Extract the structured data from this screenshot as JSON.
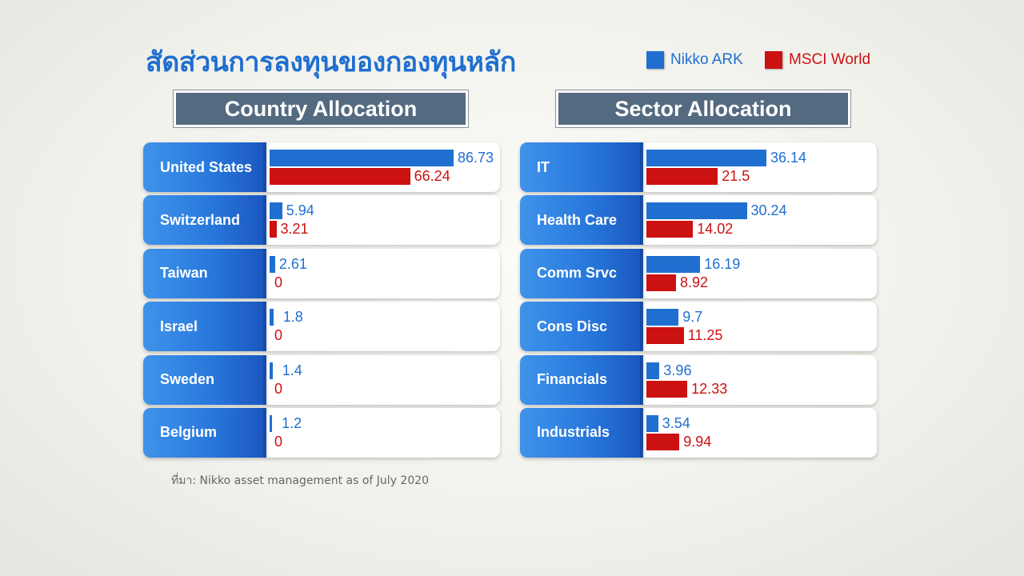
{
  "title": "สัดส่วนการลงทุนของกองทุนหลัก",
  "legend": {
    "nikko": "Nikko ARK",
    "msci": "MSCI World"
  },
  "colors": {
    "nikko": "#1f6fd0",
    "msci": "#cc1111",
    "header": "#546a80"
  },
  "source": "ที่มา: Nikko asset management as of July 2020",
  "chart_data": [
    {
      "type": "bar",
      "title": "Country Allocation",
      "categories": [
        "United States",
        "Switzerland",
        "Taiwan",
        "Israel",
        "Sweden",
        "Belgium"
      ],
      "series": [
        {
          "name": "Nikko ARK",
          "values": [
            86.73,
            5.94,
            2.61,
            1.8,
            1.4,
            1.2
          ]
        },
        {
          "name": "MSCI World",
          "values": [
            66.24,
            3.21,
            0,
            0,
            0,
            0
          ]
        }
      ],
      "value_labels": {
        "nikko": [
          "86.73",
          "5.94",
          "2.61",
          "1.8",
          "1.4",
          "1.2"
        ],
        "msci": [
          "66.24",
          "3.21",
          "0",
          "0",
          "0",
          "0"
        ]
      }
    },
    {
      "type": "bar",
      "title": "Sector Allocation",
      "categories": [
        "IT",
        "Health Care",
        "Comm Srvc",
        "Cons Disc",
        "Financials",
        "Industrials"
      ],
      "series": [
        {
          "name": "Nikko ARK",
          "values": [
            36.14,
            30.24,
            16.19,
            9.7,
            3.96,
            3.54
          ]
        },
        {
          "name": "MSCI World",
          "values": [
            21.5,
            14.02,
            8.92,
            11.25,
            12.33,
            9.94
          ]
        }
      ],
      "value_labels": {
        "nikko": [
          "36.14",
          "30.24",
          "16.19",
          "9.7",
          "3.96",
          "3.54"
        ],
        "msci": [
          "21.5",
          "14.02",
          "8.92",
          "11.25",
          "12.33",
          "9.94"
        ]
      }
    }
  ]
}
